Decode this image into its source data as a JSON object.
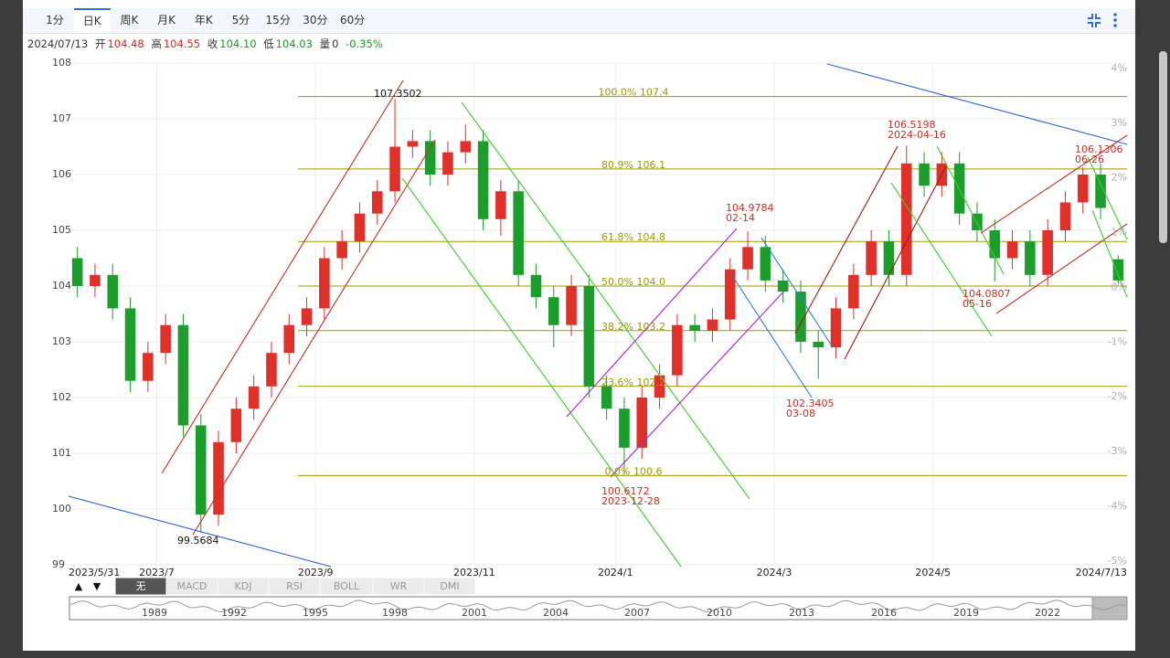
{
  "toolbar": {
    "tabs": [
      "1分",
      "日K",
      "周K",
      "月K",
      "年K",
      "5分",
      "15分",
      "30分",
      "60分"
    ],
    "active": 1
  },
  "info": {
    "date": "2024/07/13",
    "open_label": "开",
    "open": "104.48",
    "high_label": "高",
    "high": "104.55",
    "close_label": "收",
    "close": "104.10",
    "low_label": "低",
    "low": "104.03",
    "volume_label": "量",
    "volume": "0",
    "change": "-0.35%"
  },
  "chart_data": {
    "type": "candlestick",
    "categories": [
      "2023/5/31",
      null,
      null,
      null,
      null,
      "2023/7",
      null,
      null,
      null,
      null,
      null,
      null,
      null,
      null,
      "2023/9",
      null,
      null,
      null,
      null,
      null,
      null,
      null,
      null,
      "2023/11",
      null,
      null,
      null,
      null,
      null,
      null,
      null,
      "2024/1",
      null,
      null,
      null,
      null,
      null,
      null,
      null,
      null,
      "2024/3",
      null,
      null,
      null,
      null,
      null,
      null,
      null,
      null,
      "2024/5",
      null,
      null,
      null,
      null,
      null,
      null,
      null,
      null,
      null,
      "2024/7/13"
    ],
    "open": [
      104.5,
      104.0,
      104.2,
      103.6,
      102.3,
      102.8,
      103.3,
      101.5,
      99.9,
      101.2,
      101.8,
      102.2,
      102.8,
      103.3,
      103.6,
      104.5,
      104.8,
      105.3,
      105.7,
      106.5,
      106.6,
      106.0,
      106.4,
      106.6,
      105.2,
      105.7,
      104.2,
      103.8,
      103.3,
      104.0,
      102.2,
      101.8,
      101.1,
      102.0,
      102.4,
      103.3,
      103.2,
      103.4,
      104.3,
      104.7,
      104.1,
      103.9,
      103.0,
      102.9,
      103.6,
      104.2,
      104.8,
      104.2,
      106.2,
      105.8,
      106.2,
      105.3,
      105.0,
      104.5,
      104.8,
      104.2,
      105.0,
      105.5,
      106.0,
      104.48
    ],
    "high": [
      104.7,
      104.4,
      104.4,
      103.8,
      103.0,
      103.5,
      103.5,
      101.7,
      101.4,
      102.0,
      102.4,
      103.0,
      103.5,
      103.8,
      104.7,
      105.0,
      105.5,
      105.9,
      107.35,
      106.8,
      106.8,
      106.6,
      106.9,
      106.8,
      105.9,
      105.9,
      104.4,
      104.0,
      104.2,
      104.2,
      102.4,
      102.0,
      102.2,
      102.6,
      103.5,
      103.5,
      103.6,
      104.5,
      104.98,
      104.9,
      104.3,
      104.1,
      103.2,
      103.8,
      104.4,
      105.0,
      105.0,
      106.52,
      106.4,
      106.4,
      106.4,
      105.5,
      105.2,
      105.0,
      105.0,
      105.2,
      105.7,
      106.13,
      106.2,
      104.55
    ],
    "low": [
      103.8,
      103.8,
      103.4,
      102.1,
      102.1,
      102.6,
      101.3,
      99.57,
      99.7,
      101.0,
      101.6,
      102.0,
      102.6,
      103.1,
      103.4,
      104.3,
      104.6,
      105.1,
      105.5,
      106.3,
      105.8,
      105.8,
      106.2,
      105.0,
      104.9,
      104.0,
      103.6,
      102.9,
      103.1,
      102.0,
      101.6,
      100.62,
      100.9,
      101.8,
      102.2,
      103.0,
      103.0,
      103.2,
      104.1,
      103.9,
      103.7,
      102.8,
      102.34,
      102.7,
      103.4,
      104.0,
      104.0,
      104.0,
      105.6,
      105.6,
      105.1,
      104.8,
      104.08,
      104.3,
      104.0,
      104.0,
      104.8,
      105.3,
      105.2,
      104.03
    ],
    "close": [
      104.0,
      104.2,
      103.6,
      102.3,
      102.8,
      103.3,
      101.5,
      99.9,
      101.2,
      101.8,
      102.2,
      102.8,
      103.3,
      103.6,
      104.5,
      104.8,
      105.3,
      105.7,
      106.5,
      106.6,
      106.0,
      106.4,
      106.6,
      105.2,
      105.7,
      104.2,
      103.8,
      103.3,
      104.0,
      102.2,
      101.8,
      101.1,
      102.0,
      102.4,
      103.3,
      103.2,
      103.4,
      104.3,
      104.7,
      104.1,
      103.9,
      103.0,
      102.9,
      103.6,
      104.2,
      104.8,
      104.2,
      106.2,
      105.8,
      106.2,
      105.3,
      105.0,
      104.5,
      104.8,
      104.2,
      105.0,
      105.5,
      106.0,
      105.4,
      104.1
    ],
    "up_color": "#e0302a",
    "down_color": "#1c9e2c",
    "ylim": [
      99,
      108
    ],
    "yticks": [
      99,
      100,
      101,
      102,
      103,
      104,
      105,
      106,
      107,
      108
    ],
    "y2lim": [
      -5.07,
      4.1
    ],
    "y2ticks": [
      {
        "value": 4,
        "label": "4%"
      },
      {
        "value": 3,
        "label": "3%"
      },
      {
        "value": 2,
        "label": "2%"
      },
      {
        "value": 1,
        "label": "1%"
      },
      {
        "value": 0,
        "label": "0%"
      },
      {
        "value": -1,
        "label": "-1%"
      },
      {
        "value": -2,
        "label": "-2%"
      },
      {
        "value": -3,
        "label": "-3%"
      },
      {
        "value": -4,
        "label": "-4%"
      },
      {
        "value": -5,
        "label": "-5%"
      }
    ],
    "grid": true,
    "fib_color": "#9b9b00",
    "fib_levels": [
      {
        "value": 107.4,
        "label": "100.0% 107.4"
      },
      {
        "value": 106.1,
        "label": "80.9% 106.1"
      },
      {
        "value": 104.8,
        "label": "61.8% 104.8"
      },
      {
        "value": 104.0,
        "label": "50.0% 104.0"
      },
      {
        "value": 103.2,
        "label": "38.2% 103.2"
      },
      {
        "value": 102.2,
        "label": "23.6% 102.2"
      },
      {
        "value": 100.6,
        "label": "0.0% 100.6"
      }
    ],
    "annotations": [
      {
        "lines": [
          "107.3502"
        ],
        "color": "#111111"
      },
      {
        "lines": [
          "99.5684"
        ],
        "color": "#111111"
      },
      {
        "lines": [
          "100.6172",
          "2023-12-28"
        ],
        "color": "#c0302a"
      },
      {
        "lines": [
          "104.9784",
          "02-14"
        ],
        "color": "#c0302a"
      },
      {
        "lines": [
          "102.3405",
          "03-08"
        ],
        "color": "#c0302a"
      },
      {
        "lines": [
          "106.5198",
          "2024-04-16"
        ],
        "color": "#c0302a"
      },
      {
        "lines": [
          "104.0807",
          "05-16"
        ],
        "color": "#c0302a"
      },
      {
        "lines": [
          "106.1306",
          "06-26"
        ],
        "color": "#c0302a"
      }
    ]
  },
  "indicator_tabs": {
    "arrows": [
      "▲",
      "▼"
    ],
    "tabs": [
      "无",
      "MACD",
      "KDJ",
      "RSI",
      "BOLL",
      "WR",
      "DMI"
    ],
    "active": 0
  },
  "navigator": {
    "years": [
      1989,
      1992,
      1995,
      1998,
      2001,
      2004,
      2007,
      2010,
      2013,
      2016,
      2019,
      2022
    ]
  }
}
